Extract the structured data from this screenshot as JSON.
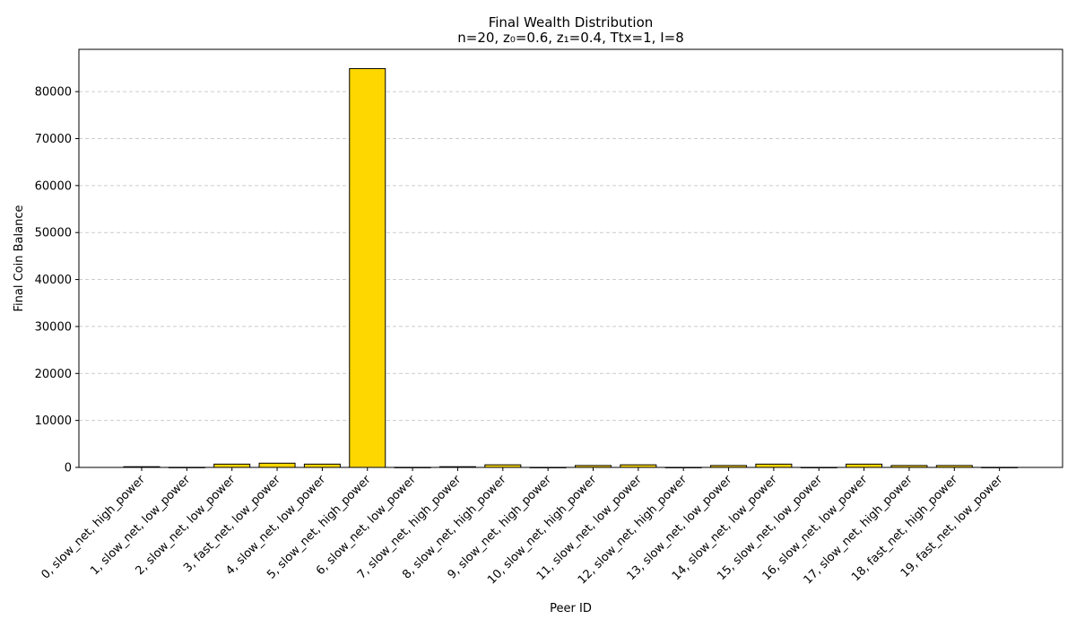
{
  "chart_data": {
    "type": "bar",
    "title": "Final Wealth Distribution",
    "subtitle": "n=20, z₀=0.6, z₁=0.4, Ttx=1, I=8",
    "xlabel": "Peer ID",
    "ylabel": "Final Coin Balance",
    "ylim": [
      0,
      89000
    ],
    "yticks": [
      0,
      10000,
      20000,
      30000,
      40000,
      50000,
      60000,
      70000,
      80000
    ],
    "grid": "y-dashed",
    "bar_color": "#FFD700",
    "bar_edge_color": "#000000",
    "grid_color": "#cccccc",
    "categories": [
      "0, slow_net, high_power",
      "1, slow_net, low_power",
      "2, slow_net, low_power",
      "3, fast_net, low_power",
      "4, slow_net, low_power",
      "5, slow_net, high_power",
      "6, slow_net, low_power",
      "7, slow_net, high_power",
      "8, slow_net, high_power",
      "9, slow_net, high_power",
      "10, slow_net, high_power",
      "11, slow_net, low_power",
      "12, slow_net, high_power",
      "13, slow_net, low_power",
      "14, slow_net, low_power",
      "15, slow_net, low_power",
      "16, slow_net, low_power",
      "17, slow_net, high_power",
      "18, fast_net, high_power",
      "19, fast_net, low_power"
    ],
    "values": [
      150,
      20,
      700,
      900,
      700,
      84900,
      20,
      150,
      550,
      10,
      400,
      550,
      10,
      400,
      700,
      10,
      700,
      400,
      400,
      20
    ]
  }
}
